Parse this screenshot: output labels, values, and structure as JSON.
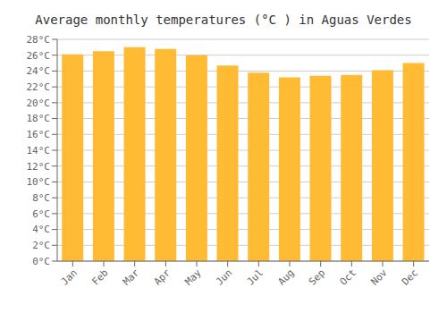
{
  "chart_data": {
    "type": "bar",
    "title": "Average monthly temperatures (°C ) in Aguas Verdes",
    "categories": [
      "Jan",
      "Feb",
      "Mar",
      "Apr",
      "May",
      "Jun",
      "Jul",
      "Aug",
      "Sep",
      "Oct",
      "Nov",
      "Dec"
    ],
    "values": [
      26.1,
      26.5,
      27.0,
      26.8,
      26.0,
      24.7,
      23.8,
      23.2,
      23.4,
      23.5,
      24.1,
      25.0
    ],
    "color": "#FFBB33",
    "ylim": [
      0,
      28
    ],
    "yticks": [
      {
        "value": 0,
        "label": "0°C"
      },
      {
        "value": 2,
        "label": "2°C"
      },
      {
        "value": 4,
        "label": "4°C"
      },
      {
        "value": 6,
        "label": "6°C"
      },
      {
        "value": 8,
        "label": "8°C"
      },
      {
        "value": 10,
        "label": "10°C"
      },
      {
        "value": 12,
        "label": "12°C"
      },
      {
        "value": 14,
        "label": "14°C"
      },
      {
        "value": 16,
        "label": "16°C"
      },
      {
        "value": 18,
        "label": "18°C"
      },
      {
        "value": 20,
        "label": "20°C"
      },
      {
        "value": 22,
        "label": "22°C"
      },
      {
        "value": 24,
        "label": "24°C"
      },
      {
        "value": 26,
        "label": "26°C"
      },
      {
        "value": 28,
        "label": "28°C"
      }
    ],
    "grid": true
  }
}
